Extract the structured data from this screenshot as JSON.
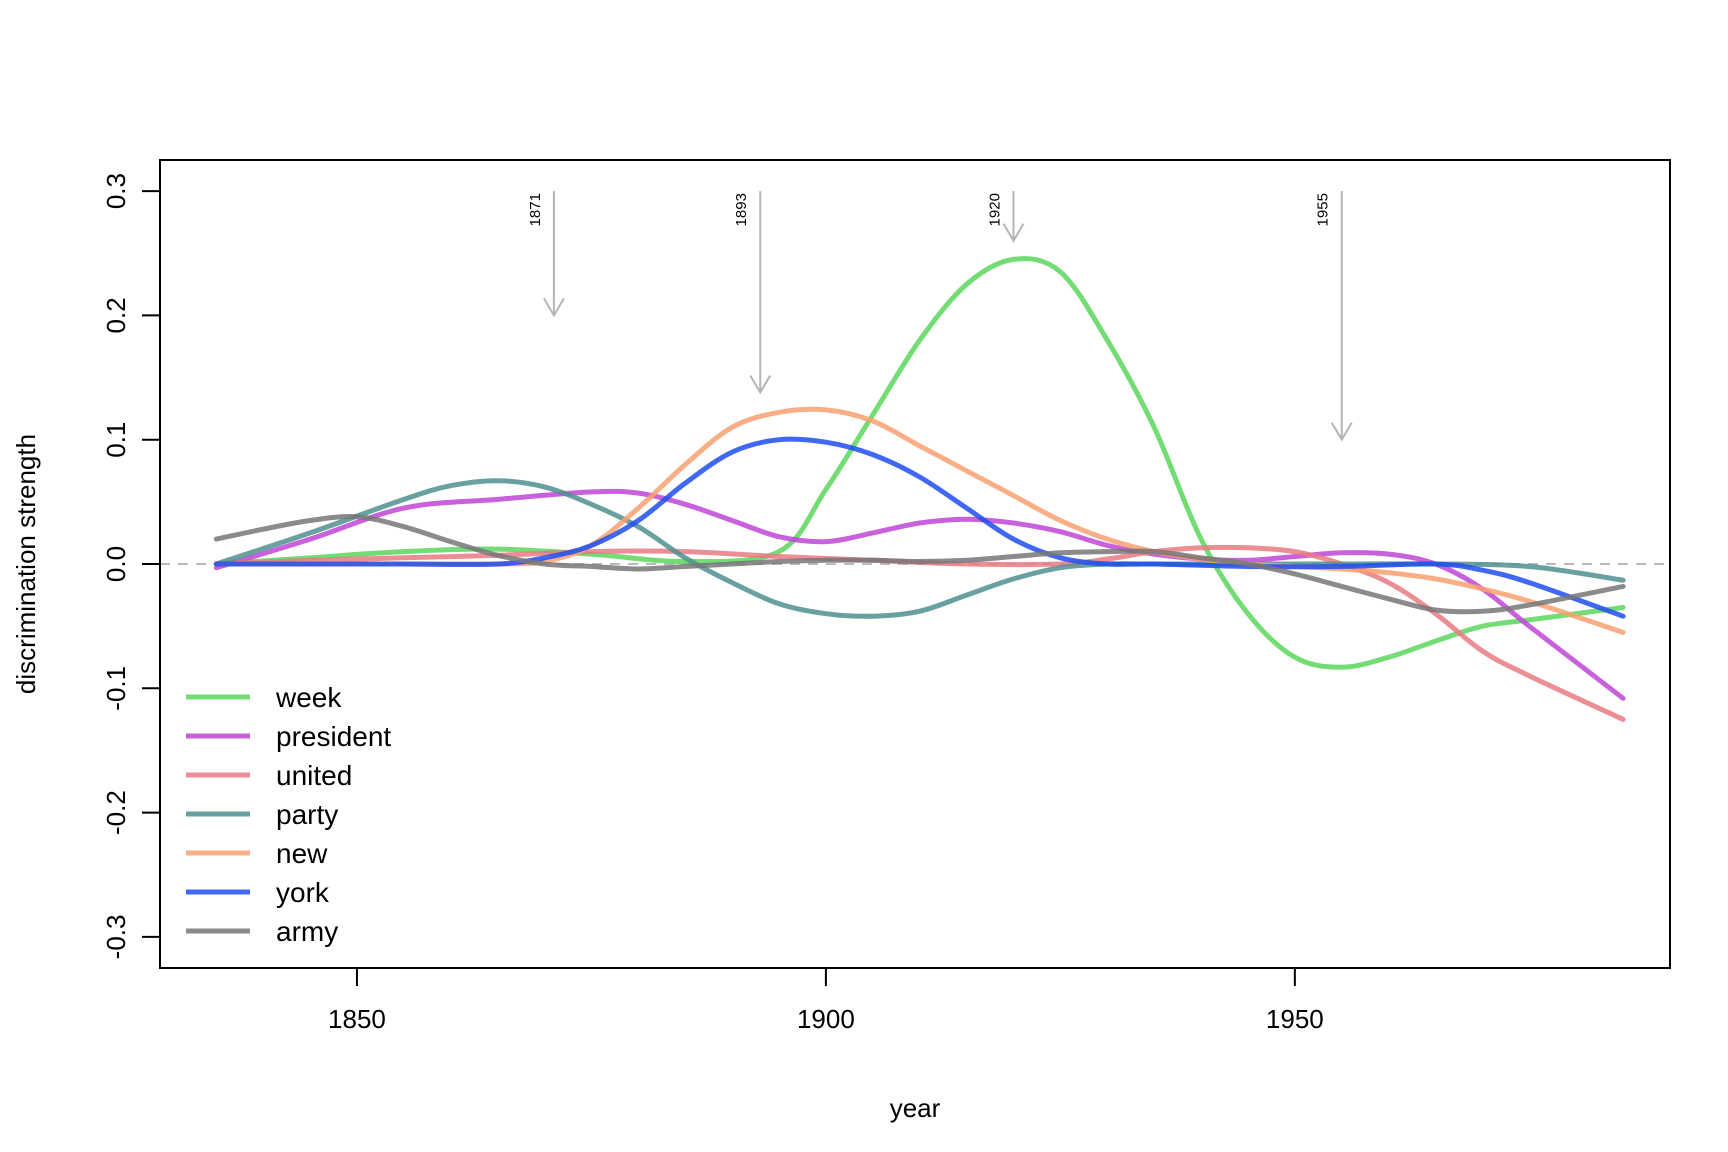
{
  "chart_data": {
    "type": "line",
    "title": "",
    "xlabel": "year",
    "ylabel": "discrimination strength",
    "xlim": [
      1829,
      1990
    ],
    "ylim": [
      -0.325,
      0.325
    ],
    "x_ticks": [
      1850,
      1900,
      1950
    ],
    "y_ticks": [
      -0.3,
      -0.2,
      -0.1,
      0.0,
      0.1,
      0.2,
      0.3
    ],
    "x_tick_labels": [
      "1850",
      "1900",
      "1950"
    ],
    "y_tick_labels": [
      "-0.3",
      "-0.2",
      "-0.1",
      "0.0",
      "0.1",
      "0.2",
      "0.3"
    ],
    "reference_line": {
      "y": 0.0,
      "style": "dashed",
      "color": "#bbbbbb"
    },
    "legend_position": "bottom-left",
    "grid": false,
    "annotations": [
      {
        "label": "1871",
        "x": 1871,
        "y_top": 0.3,
        "y_tip": 0.2
      },
      {
        "label": "1893",
        "x": 1893,
        "y_top": 0.3,
        "y_tip": 0.138
      },
      {
        "label": "1920",
        "x": 1920,
        "y_top": 0.3,
        "y_tip": 0.26
      },
      {
        "label": "1955",
        "x": 1955,
        "y_top": 0.3,
        "y_tip": 0.1
      }
    ],
    "series": [
      {
        "name": "week",
        "color": "#5cd65c",
        "x": [
          1835,
          1845,
          1855,
          1865,
          1875,
          1885,
          1895,
          1900,
          1905,
          1910,
          1915,
          1920,
          1925,
          1930,
          1935,
          1940,
          1945,
          1950,
          1955,
          1960,
          1965,
          1970,
          1975,
          1985
        ],
        "y": [
          0.0,
          0.005,
          0.01,
          0.012,
          0.008,
          0.002,
          0.01,
          0.06,
          0.12,
          0.18,
          0.225,
          0.245,
          0.235,
          0.18,
          0.11,
          0.02,
          -0.04,
          -0.075,
          -0.083,
          -0.075,
          -0.062,
          -0.05,
          -0.045,
          -0.035
        ]
      },
      {
        "name": "president",
        "color": "#bf45d6",
        "x": [
          1835,
          1845,
          1855,
          1865,
          1875,
          1880,
          1885,
          1890,
          1895,
          1900,
          1905,
          1910,
          1915,
          1920,
          1925,
          1930,
          1935,
          1940,
          1945,
          1950,
          1955,
          1960,
          1965,
          1970,
          1975,
          1985
        ],
        "y": [
          -0.003,
          0.02,
          0.045,
          0.052,
          0.058,
          0.057,
          0.048,
          0.035,
          0.022,
          0.018,
          0.025,
          0.033,
          0.036,
          0.033,
          0.026,
          0.015,
          0.008,
          0.004,
          0.003,
          0.006,
          0.009,
          0.008,
          0.0,
          -0.02,
          -0.05,
          -0.108
        ]
      },
      {
        "name": "united",
        "color": "#e87a82",
        "x": [
          1835,
          1845,
          1855,
          1865,
          1875,
          1885,
          1895,
          1905,
          1915,
          1925,
          1930,
          1935,
          1940,
          1945,
          1950,
          1955,
          1960,
          1965,
          1970,
          1975,
          1985
        ],
        "y": [
          0.0,
          0.003,
          0.005,
          0.007,
          0.01,
          0.01,
          0.006,
          0.003,
          0.0,
          0.0,
          0.004,
          0.01,
          0.013,
          0.013,
          0.01,
          0.0,
          -0.015,
          -0.04,
          -0.07,
          -0.09,
          -0.125
        ]
      },
      {
        "name": "party",
        "color": "#4f9090",
        "x": [
          1835,
          1845,
          1855,
          1860,
          1865,
          1870,
          1875,
          1880,
          1885,
          1890,
          1895,
          1900,
          1905,
          1910,
          1915,
          1920,
          1925,
          1930,
          1935,
          1945,
          1955,
          1965,
          1975,
          1985
        ],
        "y": [
          0.0,
          0.025,
          0.052,
          0.063,
          0.067,
          0.062,
          0.048,
          0.03,
          0.005,
          -0.015,
          -0.032,
          -0.04,
          -0.042,
          -0.038,
          -0.025,
          -0.012,
          -0.003,
          0.0,
          0.0,
          0.0,
          0.0,
          0.0,
          -0.002,
          -0.013
        ]
      },
      {
        "name": "new",
        "color": "#f8a070",
        "x": [
          1835,
          1845,
          1855,
          1865,
          1870,
          1875,
          1880,
          1885,
          1890,
          1895,
          1900,
          1905,
          1910,
          1915,
          1920,
          1925,
          1930,
          1935,
          1940,
          1945,
          1950,
          1955,
          1960,
          1965,
          1970,
          1975,
          1985
        ],
        "y": [
          0.0,
          0.0,
          0.0,
          0.0,
          0.002,
          0.015,
          0.045,
          0.08,
          0.11,
          0.122,
          0.124,
          0.115,
          0.095,
          0.075,
          0.055,
          0.035,
          0.02,
          0.01,
          0.004,
          0.0,
          -0.002,
          -0.004,
          -0.007,
          -0.012,
          -0.02,
          -0.03,
          -0.055
        ]
      },
      {
        "name": "york",
        "color": "#1f4ef0",
        "x": [
          1835,
          1845,
          1855,
          1865,
          1870,
          1875,
          1880,
          1885,
          1890,
          1895,
          1900,
          1905,
          1910,
          1915,
          1920,
          1925,
          1930,
          1935,
          1945,
          1955,
          1965,
          1970,
          1975,
          1985
        ],
        "y": [
          0.0,
          0.0,
          0.0,
          0.0,
          0.005,
          0.015,
          0.035,
          0.065,
          0.09,
          0.1,
          0.098,
          0.088,
          0.07,
          0.045,
          0.02,
          0.005,
          0.0,
          0.0,
          -0.002,
          -0.002,
          0.0,
          -0.005,
          -0.015,
          -0.042
        ]
      },
      {
        "name": "army",
        "color": "#777777",
        "x": [
          1835,
          1840,
          1845,
          1850,
          1855,
          1860,
          1865,
          1870,
          1875,
          1880,
          1885,
          1890,
          1895,
          1900,
          1905,
          1910,
          1915,
          1920,
          1925,
          1930,
          1935,
          1940,
          1945,
          1950,
          1955,
          1960,
          1965,
          1970,
          1975,
          1985
        ],
        "y": [
          0.02,
          0.028,
          0.035,
          0.038,
          0.03,
          0.018,
          0.007,
          0.0,
          -0.002,
          -0.004,
          -0.002,
          0.0,
          0.002,
          0.003,
          0.003,
          0.002,
          0.003,
          0.006,
          0.009,
          0.01,
          0.01,
          0.005,
          0.0,
          -0.008,
          -0.018,
          -0.028,
          -0.037,
          -0.038,
          -0.033,
          -0.018
        ]
      }
    ]
  }
}
